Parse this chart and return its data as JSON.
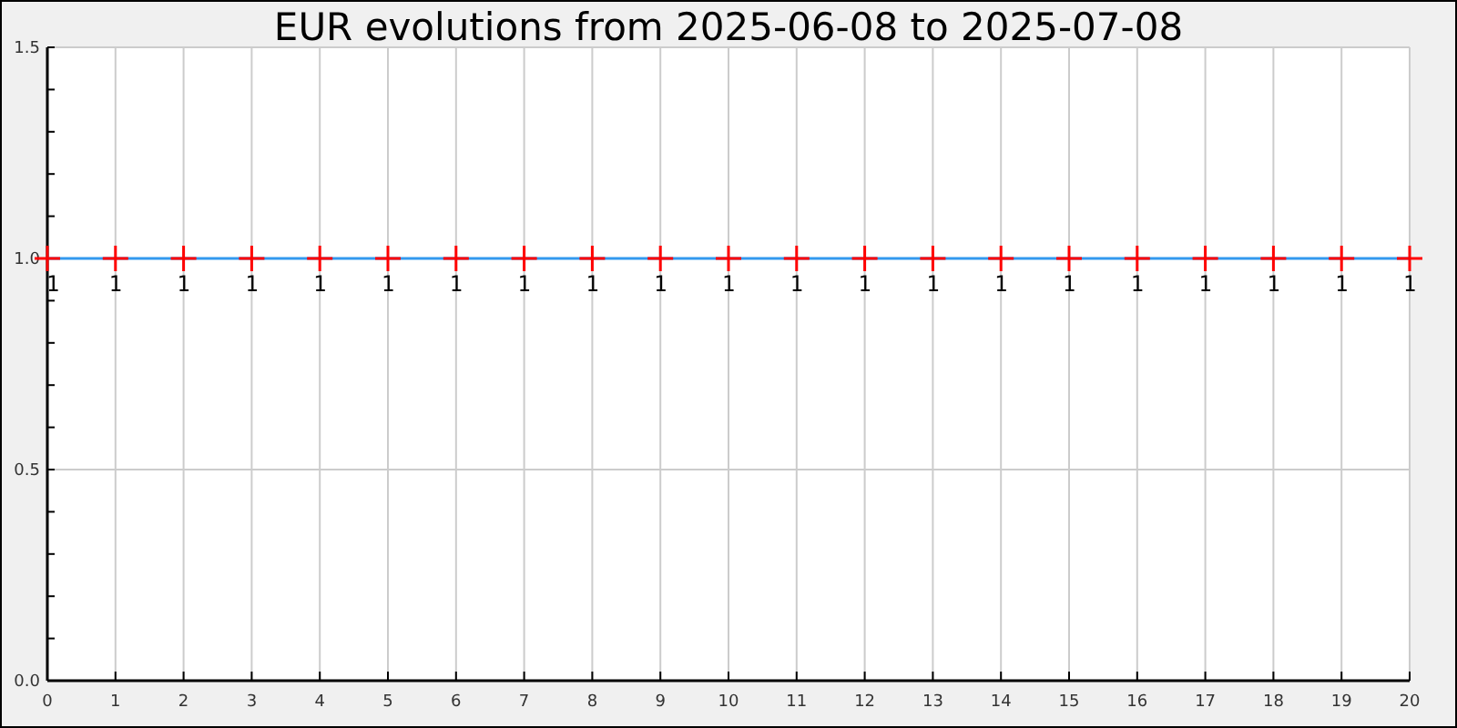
{
  "chart_data": {
    "type": "line",
    "title": "EUR evolutions from 2025-06-08 to 2025-07-08",
    "x": [
      0,
      1,
      2,
      3,
      4,
      5,
      6,
      7,
      8,
      9,
      10,
      11,
      12,
      13,
      14,
      15,
      16,
      17,
      18,
      19,
      20
    ],
    "series": [
      {
        "color": "#3399ee",
        "values": [
          1,
          1,
          1,
          1,
          1,
          1,
          1,
          1,
          1,
          1,
          1,
          1,
          1,
          1,
          1,
          1,
          1,
          1,
          1,
          1,
          1
        ]
      }
    ],
    "marker": "cross",
    "data_labels": true,
    "grid": true,
    "xlim": [
      0,
      20
    ],
    "xticks": [
      0,
      1,
      2,
      3,
      4,
      5,
      6,
      7,
      8,
      9,
      10,
      11,
      12,
      13,
      14,
      15,
      16,
      17,
      18,
      19,
      20
    ],
    "ylim": [
      0,
      1.5
    ],
    "yticks": [
      {
        "value": 0,
        "label": "0.0"
      },
      {
        "value": 0.1,
        "label": null
      },
      {
        "value": 0.2,
        "label": null
      },
      {
        "value": 0.3,
        "label": null
      },
      {
        "value": 0.4,
        "label": null
      },
      {
        "value": 0.5,
        "label": "0.5"
      },
      {
        "value": 0.6,
        "label": null
      },
      {
        "value": 0.7,
        "label": null
      },
      {
        "value": 0.8,
        "label": null
      },
      {
        "value": 0.9,
        "label": null
      },
      {
        "value": 1,
        "label": "1.0"
      },
      {
        "value": 1.1,
        "label": null
      },
      {
        "value": 1.2,
        "label": null
      },
      {
        "value": 1.3,
        "label": null
      },
      {
        "value": 1.4,
        "label": null
      },
      {
        "value": 1.5,
        "label": "1.5"
      }
    ]
  }
}
